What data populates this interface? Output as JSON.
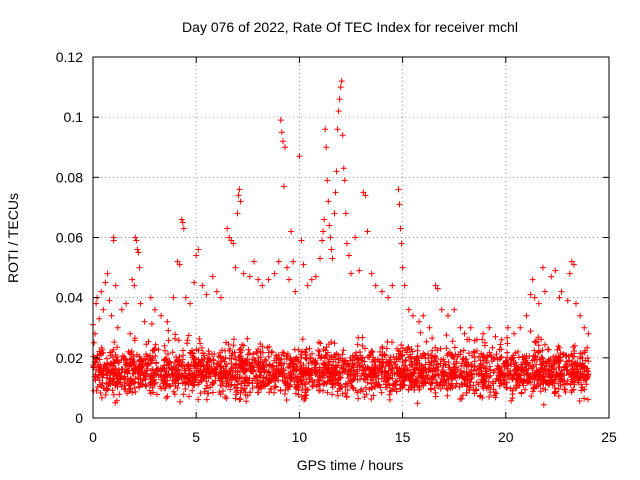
{
  "chart_data": {
    "type": "scatter",
    "title": "Day 076 of 2022, Rate Of TEC Index for receiver mchl",
    "xlabel": "GPS time / hours",
    "ylabel": "ROTI / TECUs",
    "xlim": [
      0,
      25
    ],
    "ylim": [
      0,
      0.12
    ],
    "xticks": [
      {
        "value": 0,
        "label": "0"
      },
      {
        "value": 5,
        "label": "5"
      },
      {
        "value": 10,
        "label": "10"
      },
      {
        "value": 15,
        "label": "15"
      },
      {
        "value": 20,
        "label": "20"
      },
      {
        "value": 25,
        "label": "25"
      }
    ],
    "yticks": [
      {
        "value": 0,
        "label": "0"
      },
      {
        "value": 0.02,
        "label": "0.02"
      },
      {
        "value": 0.04,
        "label": "0.04"
      },
      {
        "value": 0.06,
        "label": "0.06"
      },
      {
        "value": 0.08,
        "label": "0.08"
      },
      {
        "value": 0.1,
        "label": "0.1"
      },
      {
        "value": 0.12,
        "label": "0.12"
      }
    ],
    "grid": true,
    "marker": "plus",
    "color": "#ff0000",
    "series": [
      {
        "name": "ROTI",
        "points": [
          [
            0.0,
            0.031
          ],
          [
            0.05,
            0.025
          ],
          [
            0.1,
            0.028
          ],
          [
            0.15,
            0.038
          ],
          [
            0.2,
            0.04
          ],
          [
            0.3,
            0.033
          ],
          [
            0.4,
            0.042
          ],
          [
            0.5,
            0.036
          ],
          [
            0.6,
            0.045
          ],
          [
            0.7,
            0.048
          ],
          [
            0.8,
            0.039
          ],
          [
            0.9,
            0.034
          ],
          [
            1.0,
            0.059
          ],
          [
            1.0,
            0.06
          ],
          [
            1.1,
            0.044
          ],
          [
            1.2,
            0.03
          ],
          [
            1.4,
            0.036
          ],
          [
            1.6,
            0.038
          ],
          [
            1.8,
            0.028
          ],
          [
            1.9,
            0.046
          ],
          [
            2.0,
            0.044
          ],
          [
            2.05,
            0.06
          ],
          [
            2.1,
            0.059
          ],
          [
            2.15,
            0.056
          ],
          [
            2.2,
            0.055
          ],
          [
            2.25,
            0.05
          ],
          [
            2.3,
            0.038
          ],
          [
            2.5,
            0.032
          ],
          [
            2.8,
            0.04
          ],
          [
            3.0,
            0.036
          ],
          [
            3.3,
            0.034
          ],
          [
            3.6,
            0.032
          ],
          [
            3.9,
            0.04
          ],
          [
            4.1,
            0.052
          ],
          [
            4.2,
            0.051
          ],
          [
            4.3,
            0.066
          ],
          [
            4.35,
            0.065
          ],
          [
            4.4,
            0.063
          ],
          [
            4.5,
            0.04
          ],
          [
            4.7,
            0.038
          ],
          [
            4.9,
            0.045
          ],
          [
            5.0,
            0.054
          ],
          [
            5.1,
            0.056
          ],
          [
            5.3,
            0.044
          ],
          [
            5.5,
            0.041
          ],
          [
            5.8,
            0.047
          ],
          [
            6.0,
            0.042
          ],
          [
            6.2,
            0.04
          ],
          [
            6.5,
            0.063
          ],
          [
            6.6,
            0.06
          ],
          [
            6.7,
            0.059
          ],
          [
            6.8,
            0.058
          ],
          [
            6.9,
            0.05
          ],
          [
            7.0,
            0.068
          ],
          [
            7.05,
            0.074
          ],
          [
            7.1,
            0.076
          ],
          [
            7.15,
            0.072
          ],
          [
            7.3,
            0.048
          ],
          [
            7.6,
            0.047
          ],
          [
            7.8,
            0.052
          ],
          [
            8.0,
            0.046
          ],
          [
            8.2,
            0.044
          ],
          [
            8.5,
            0.046
          ],
          [
            8.8,
            0.048
          ],
          [
            9.0,
            0.052
          ],
          [
            9.1,
            0.099
          ],
          [
            9.15,
            0.095
          ],
          [
            9.2,
            0.092
          ],
          [
            9.25,
            0.077
          ],
          [
            9.3,
            0.09
          ],
          [
            9.4,
            0.05
          ],
          [
            9.5,
            0.046
          ],
          [
            9.6,
            0.062
          ],
          [
            9.7,
            0.052
          ],
          [
            9.8,
            0.042
          ],
          [
            10.0,
            0.087
          ],
          [
            10.1,
            0.059
          ],
          [
            10.2,
            0.051
          ],
          [
            10.4,
            0.044
          ],
          [
            10.6,
            0.046
          ],
          [
            10.8,
            0.047
          ],
          [
            11.0,
            0.053
          ],
          [
            11.1,
            0.059
          ],
          [
            11.15,
            0.062
          ],
          [
            11.2,
            0.066
          ],
          [
            11.25,
            0.096
          ],
          [
            11.3,
            0.09
          ],
          [
            11.35,
            0.079
          ],
          [
            11.4,
            0.072
          ],
          [
            11.45,
            0.064
          ],
          [
            11.5,
            0.06
          ],
          [
            11.55,
            0.056
          ],
          [
            11.6,
            0.053
          ],
          [
            11.7,
            0.068
          ],
          [
            11.75,
            0.075
          ],
          [
            11.8,
            0.082
          ],
          [
            11.85,
            0.096
          ],
          [
            11.9,
            0.102
          ],
          [
            11.95,
            0.106
          ],
          [
            12.0,
            0.11
          ],
          [
            12.05,
            0.112
          ],
          [
            12.1,
            0.094
          ],
          [
            12.15,
            0.083
          ],
          [
            12.2,
            0.079
          ],
          [
            12.25,
            0.068
          ],
          [
            12.3,
            0.058
          ],
          [
            12.4,
            0.054
          ],
          [
            12.5,
            0.048
          ],
          [
            12.7,
            0.06
          ],
          [
            12.9,
            0.049
          ],
          [
            13.1,
            0.075
          ],
          [
            13.2,
            0.074
          ],
          [
            13.3,
            0.062
          ],
          [
            13.5,
            0.048
          ],
          [
            13.7,
            0.044
          ],
          [
            14.0,
            0.042
          ],
          [
            14.3,
            0.04
          ],
          [
            14.5,
            0.044
          ],
          [
            14.8,
            0.076
          ],
          [
            14.85,
            0.071
          ],
          [
            14.9,
            0.063
          ],
          [
            14.95,
            0.058
          ],
          [
            15.0,
            0.05
          ],
          [
            15.1,
            0.044
          ],
          [
            15.3,
            0.036
          ],
          [
            15.5,
            0.034
          ],
          [
            15.8,
            0.032
          ],
          [
            16.0,
            0.034
          ],
          [
            16.3,
            0.03
          ],
          [
            16.6,
            0.044
          ],
          [
            16.7,
            0.043
          ],
          [
            16.9,
            0.036
          ],
          [
            17.2,
            0.034
          ],
          [
            17.5,
            0.036
          ],
          [
            17.8,
            0.03
          ],
          [
            18.0,
            0.028
          ],
          [
            18.3,
            0.03
          ],
          [
            18.6,
            0.026
          ],
          [
            18.9,
            0.028
          ],
          [
            19.2,
            0.03
          ],
          [
            19.5,
            0.027
          ],
          [
            19.8,
            0.026
          ],
          [
            20.1,
            0.03
          ],
          [
            20.4,
            0.028
          ],
          [
            20.7,
            0.03
          ],
          [
            21.0,
            0.034
          ],
          [
            21.2,
            0.041
          ],
          [
            21.3,
            0.046
          ],
          [
            21.4,
            0.04
          ],
          [
            21.6,
            0.038
          ],
          [
            21.8,
            0.05
          ],
          [
            21.9,
            0.042
          ],
          [
            22.2,
            0.047
          ],
          [
            22.4,
            0.049
          ],
          [
            22.6,
            0.04
          ],
          [
            22.7,
            0.042
          ],
          [
            23.0,
            0.039
          ],
          [
            23.1,
            0.048
          ],
          [
            23.2,
            0.052
          ],
          [
            23.3,
            0.051
          ],
          [
            23.4,
            0.038
          ],
          [
            23.6,
            0.034
          ],
          [
            23.8,
            0.03
          ],
          [
            24.0,
            0.028
          ]
        ],
        "dense_band": {
          "description": "continuous cluster of points across the full day",
          "x_range": [
            0,
            24
          ],
          "y_range": [
            0.004,
            0.026
          ],
          "count": 2600
        }
      }
    ]
  }
}
